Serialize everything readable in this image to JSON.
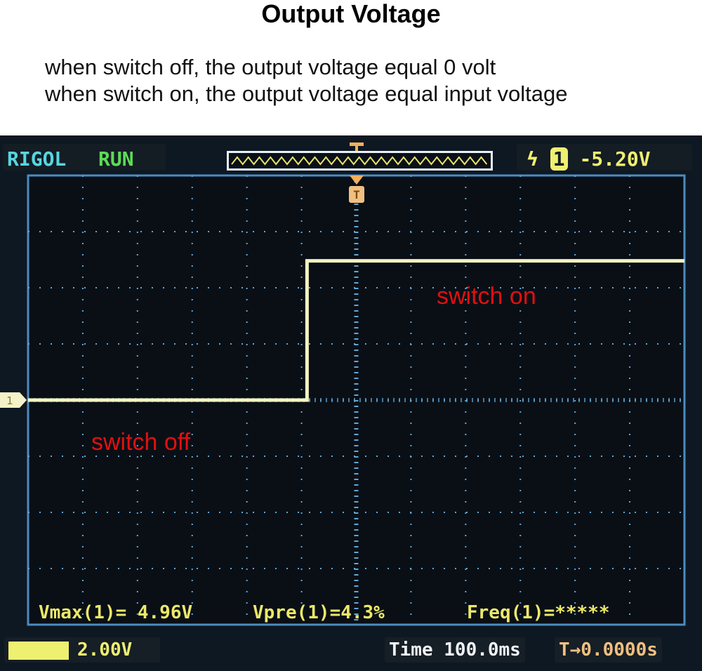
{
  "header": {
    "title": "Output Voltage",
    "lines": [
      "when switch off, the output voltage equal 0 volt",
      "when switch on, the output voltage equal input voltage"
    ]
  },
  "scope": {
    "brand": "RIGOL",
    "status": "RUN",
    "trigger_level": "-5.20V",
    "trigger_channel": "1",
    "channel_marker": "1",
    "trigger_marker": "T",
    "measurements": {
      "vmax": "Vmax(1)= 4.96V",
      "vpre": "Vpre(1)=4.3%",
      "freq": "Freq(1)=*****"
    },
    "ch1_scale": "2.00V",
    "timebase": "Time 100.0ms",
    "trigger_offset": "T→0.0000s",
    "colors": {
      "trace": "#f4f5c0",
      "grid": "#5fa8d8",
      "background": "#0a0f16",
      "annotation": "#e01010"
    }
  },
  "annotations": {
    "on": "switch on",
    "off": "switch off"
  },
  "chart_data": {
    "type": "line",
    "title": "Output Voltage",
    "xlabel": "",
    "ylabel": "",
    "x_unit": "ms",
    "y_unit": "V",
    "xlim": [
      -600,
      600
    ],
    "ylim": [
      -8,
      8
    ],
    "grid": true,
    "x_divisions": 12,
    "y_divisions": 8,
    "series": [
      {
        "x": [
          -600,
          -90,
          -90,
          600
        ],
        "y": [
          0,
          0,
          4.96,
          4.96
        ]
      }
    ]
  }
}
